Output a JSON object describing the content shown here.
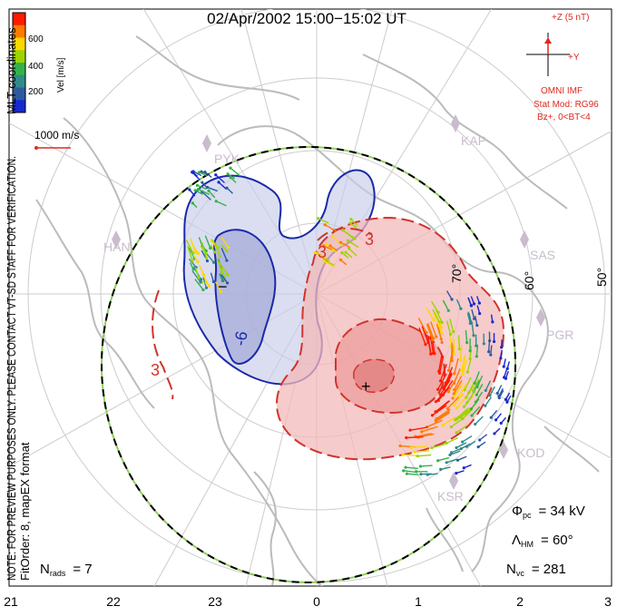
{
  "title": "02/Apr/2002 15:00−15:02 UT",
  "colorbar": {
    "label": "Vel [m/s]",
    "ticks": [
      "600",
      "400",
      "200"
    ],
    "colors": [
      "#ff1a00",
      "#ff7a00",
      "#ffd700",
      "#9cd400",
      "#33b24a",
      "#2f8a8a",
      "#2c5aa0",
      "#1628d0"
    ]
  },
  "coord_label": "MLT coordinates",
  "reference_vector": "1000 m/s",
  "imf": {
    "z_label": "+Z (5 nT)",
    "y_label": "+Y",
    "source": "OMNI IMF",
    "model": "Stat Mod: RG96",
    "condition": "Bz+, 0<BT<4"
  },
  "stations": [
    "PYK",
    "HAN",
    "KAP",
    "SAS",
    "PGR",
    "KOD",
    "KSR"
  ],
  "latitude_labels": [
    "70°",
    "60°",
    "50°"
  ],
  "contour_labels": [
    "3",
    "3",
    "-6",
    "-3",
    "3",
    "3"
  ],
  "extrema": {
    "min_marker": "−",
    "max_marker": "+"
  },
  "stats": {
    "phi_pc_symbol": "Φ",
    "phi_pc_sub": "pc",
    "phi_pc_value": "= 34 kV",
    "lambda_symbol": "Λ",
    "lambda_sub": "HM",
    "lambda_value": "= 60°",
    "nvc_symbol": "N",
    "nvc_sub": "vc",
    "nvc_value": "= 281",
    "nrads_symbol": "N",
    "nrads_sub": "rads",
    "nrads_value": "= 7"
  },
  "side_note_1": "NOTE: FOR PREVIEW PURPOSES ONLY. PLEASE CONTACT VT-SD STAFF FOR VERIFICATION.",
  "side_note_2": "FitOrder: 8, mapEX format",
  "mlt_ticks": [
    "21",
    "22",
    "23",
    "0",
    "1",
    "2",
    "3"
  ]
}
